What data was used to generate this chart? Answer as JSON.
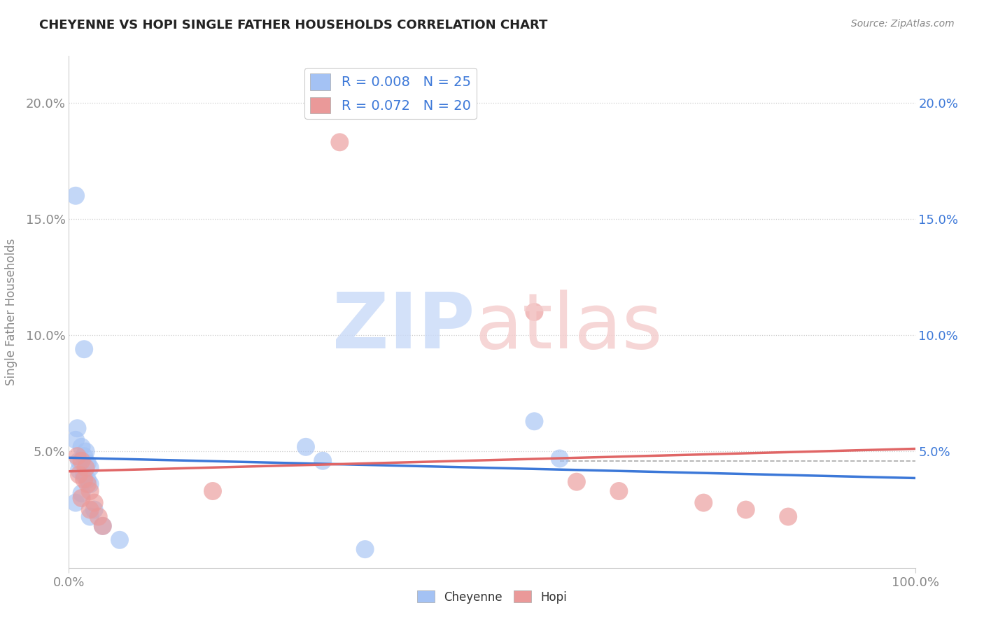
{
  "title": "CHEYENNE VS HOPI SINGLE FATHER HOUSEHOLDS CORRELATION CHART",
  "source": "Source: ZipAtlas.com",
  "ylabel": "Single Father Households",
  "cheyenne_R": "0.008",
  "cheyenne_N": "25",
  "hopi_R": "0.072",
  "hopi_N": "20",
  "cheyenne_color": "#a4c2f4",
  "hopi_color": "#ea9999",
  "cheyenne_line_color": "#3c78d8",
  "hopi_line_color": "#e06666",
  "xlim": [
    0,
    1.0
  ],
  "ylim": [
    0,
    0.22
  ],
  "yticks": [
    0.05,
    0.1,
    0.15,
    0.2
  ],
  "ytick_labels": [
    "5.0%",
    "10.0%",
    "15.0%",
    "20.0%"
  ],
  "xticks": [
    0.0,
    1.0
  ],
  "xtick_labels": [
    "0.0%",
    "100.0%"
  ],
  "cheyenne_scatter": [
    [
      0.008,
      0.16
    ],
    [
      0.018,
      0.094
    ],
    [
      0.01,
      0.06
    ],
    [
      0.008,
      0.055
    ],
    [
      0.015,
      0.052
    ],
    [
      0.02,
      0.05
    ],
    [
      0.018,
      0.048
    ],
    [
      0.012,
      0.046
    ],
    [
      0.022,
      0.045
    ],
    [
      0.025,
      0.043
    ],
    [
      0.012,
      0.042
    ],
    [
      0.018,
      0.04
    ],
    [
      0.022,
      0.038
    ],
    [
      0.025,
      0.036
    ],
    [
      0.015,
      0.032
    ],
    [
      0.008,
      0.028
    ],
    [
      0.03,
      0.025
    ],
    [
      0.025,
      0.022
    ],
    [
      0.04,
      0.018
    ],
    [
      0.06,
      0.012
    ],
    [
      0.28,
      0.052
    ],
    [
      0.3,
      0.046
    ],
    [
      0.55,
      0.063
    ],
    [
      0.58,
      0.047
    ],
    [
      0.35,
      0.008
    ]
  ],
  "hopi_scatter": [
    [
      0.32,
      0.183
    ],
    [
      0.01,
      0.048
    ],
    [
      0.015,
      0.046
    ],
    [
      0.02,
      0.043
    ],
    [
      0.012,
      0.04
    ],
    [
      0.018,
      0.038
    ],
    [
      0.022,
      0.036
    ],
    [
      0.025,
      0.033
    ],
    [
      0.015,
      0.03
    ],
    [
      0.03,
      0.028
    ],
    [
      0.025,
      0.025
    ],
    [
      0.035,
      0.022
    ],
    [
      0.04,
      0.018
    ],
    [
      0.17,
      0.033
    ],
    [
      0.55,
      0.11
    ],
    [
      0.6,
      0.037
    ],
    [
      0.65,
      0.033
    ],
    [
      0.75,
      0.028
    ],
    [
      0.8,
      0.025
    ],
    [
      0.85,
      0.022
    ]
  ],
  "dashed_line_y": 0.046,
  "dashed_line_xmin": 0.58,
  "dashed_line_xmax": 1.0,
  "watermark_zip_color": "#c9daf8",
  "watermark_atlas_color": "#f4cccc"
}
